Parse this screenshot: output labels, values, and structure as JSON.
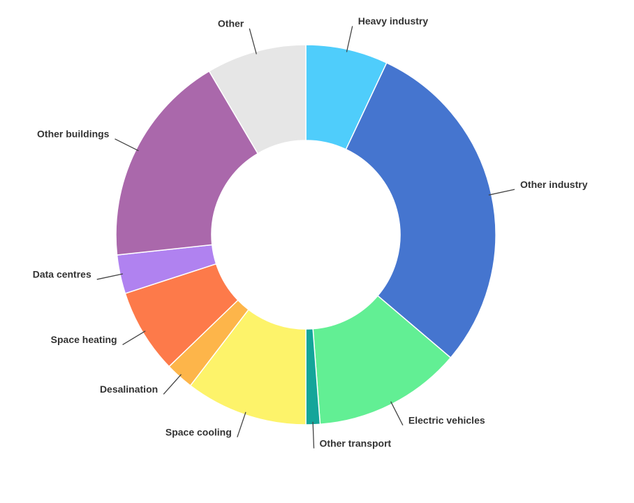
{
  "chart_data": {
    "type": "donut",
    "categories": [
      "Heavy industry",
      "Other industry",
      "Electric vehicles",
      "Other transport",
      "Space cooling",
      "Desalination",
      "Space heating",
      "Data centres",
      "Other buildings",
      "Other"
    ],
    "values": [
      7,
      29.2,
      12.6,
      1.2,
      10.4,
      2.4,
      7.2,
      3.3,
      18.2,
      8.5
    ],
    "colors": [
      "#4fcdfb",
      "#4575cf",
      "#62ef94",
      "#14a59a",
      "#fdf36a",
      "#fdb54a",
      "#fd7a4a",
      "#b082f0",
      "#aa68ab",
      "#e6e6e6"
    ]
  }
}
